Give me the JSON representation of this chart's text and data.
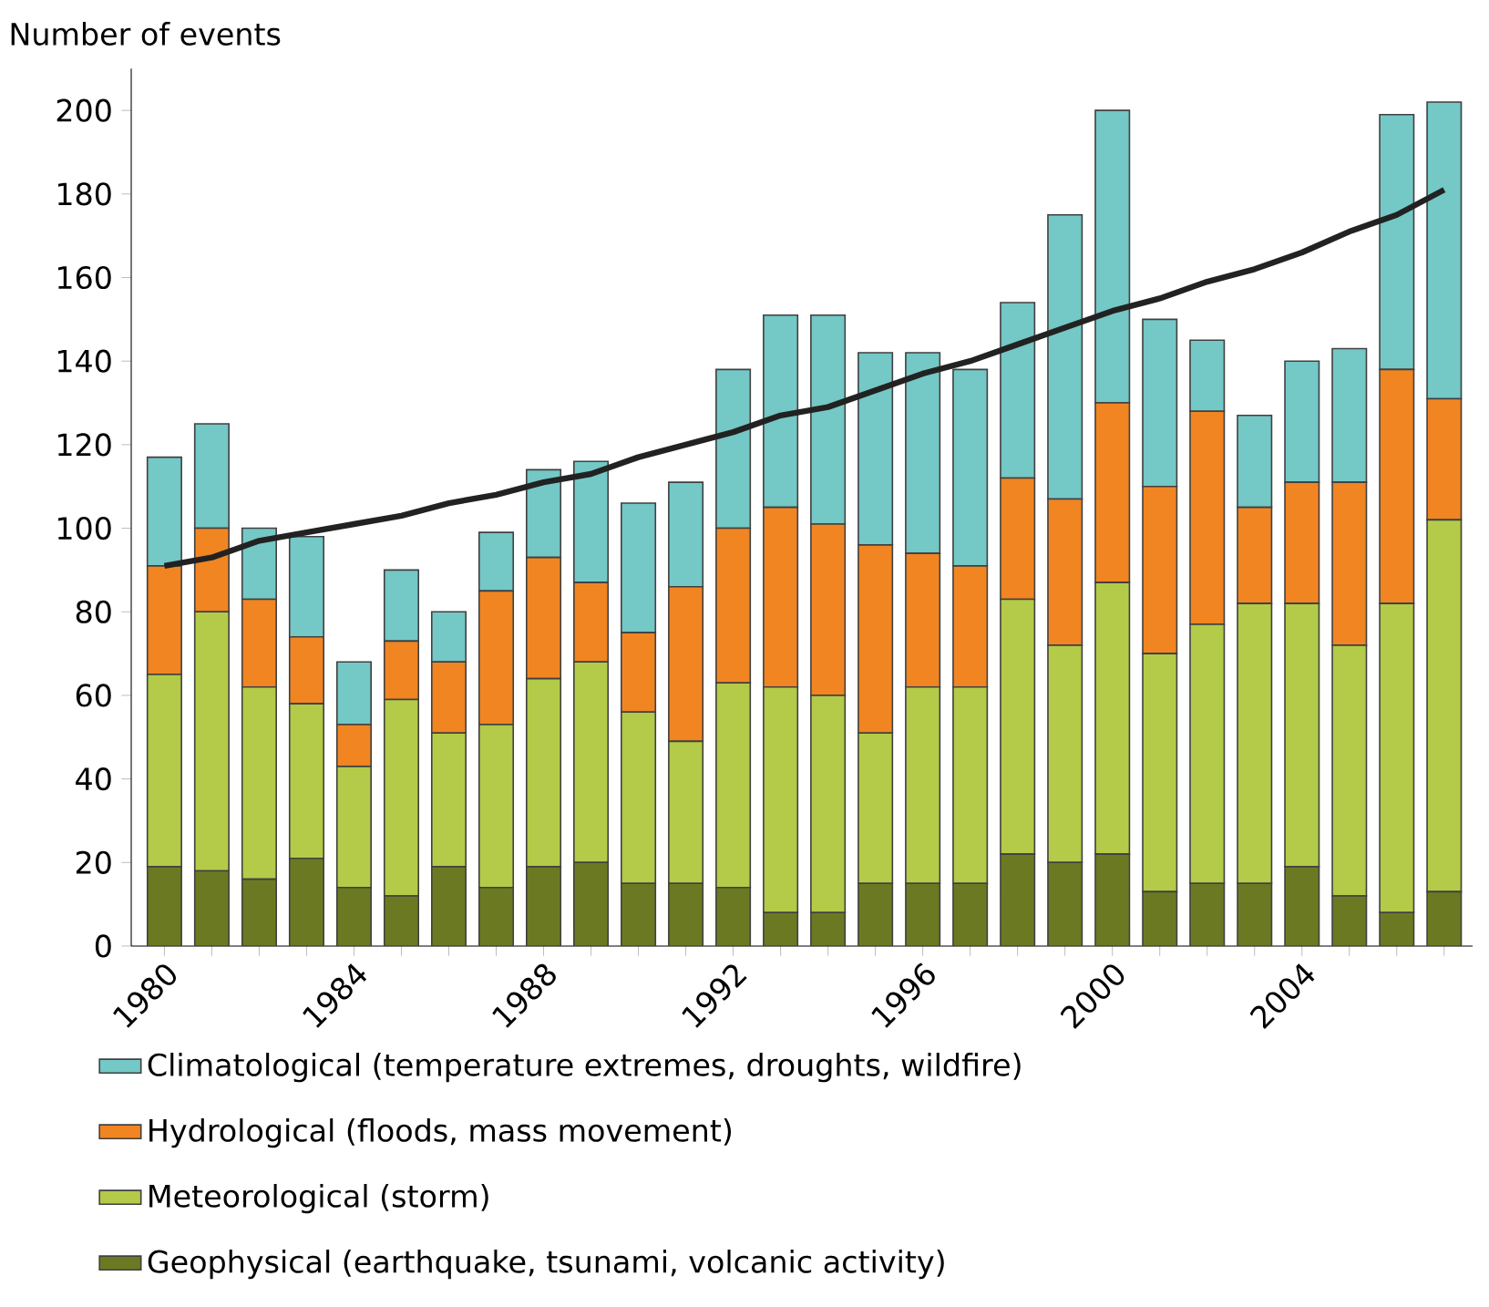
{
  "chart_data": {
    "type": "bar",
    "stacked": true,
    "ylabel": "Number of events",
    "categories": [
      "1980",
      null,
      null,
      null,
      "1984",
      null,
      null,
      null,
      "1988",
      null,
      null,
      null,
      "1992",
      null,
      null,
      null,
      "1996",
      null,
      null,
      null,
      "2000",
      null,
      null,
      null,
      "2004",
      null,
      null,
      null
    ],
    "series": [
      {
        "name": "Geophysical (earthquake, tsunami, volcanic activity)",
        "color": "#6b7a22",
        "values": [
          19,
          18,
          16,
          21,
          14,
          12,
          19,
          14,
          19,
          20,
          15,
          15,
          14,
          8,
          8,
          15,
          15,
          15,
          22,
          20,
          22,
          13,
          15,
          15,
          19,
          12,
          8,
          13
        ]
      },
      {
        "name": "Meteorological (storm)",
        "color": "#b3cb48",
        "values": [
          46,
          62,
          46,
          37,
          29,
          47,
          32,
          39,
          45,
          48,
          41,
          34,
          49,
          54,
          52,
          36,
          47,
          47,
          61,
          52,
          65,
          57,
          62,
          67,
          63,
          60,
          74,
          89
        ]
      },
      {
        "name": "Hydrological (floods, mass movement)",
        "color": "#f18522",
        "values": [
          26,
          20,
          21,
          16,
          10,
          14,
          17,
          32,
          29,
          19,
          19,
          37,
          37,
          43,
          41,
          45,
          32,
          29,
          29,
          35,
          43,
          40,
          51,
          23,
          29,
          39,
          56,
          29
        ]
      },
      {
        "name": "Climatological (temperature extremes, droughts, wildfire)",
        "color": "#74c8c6",
        "values": [
          26,
          25,
          17,
          24,
          15,
          17,
          12,
          14,
          21,
          29,
          31,
          25,
          38,
          46,
          50,
          46,
          48,
          47,
          42,
          68,
          70,
          40,
          17,
          22,
          29,
          32,
          61,
          71
        ]
      },
      {
        "type": "line",
        "color": "#222222",
        "values": [
          91,
          93,
          97,
          99,
          101,
          103,
          106,
          108,
          111,
          113,
          117,
          120,
          123,
          127,
          129,
          133,
          137,
          140,
          144,
          148,
          152,
          155,
          159,
          162,
          166,
          171,
          175,
          181
        ]
      }
    ],
    "ylim": [
      0,
      210
    ],
    "yticks": [
      0,
      20,
      40,
      60,
      80,
      100,
      120,
      140,
      160,
      180,
      200
    ],
    "legend": "bottom",
    "grid": false
  }
}
